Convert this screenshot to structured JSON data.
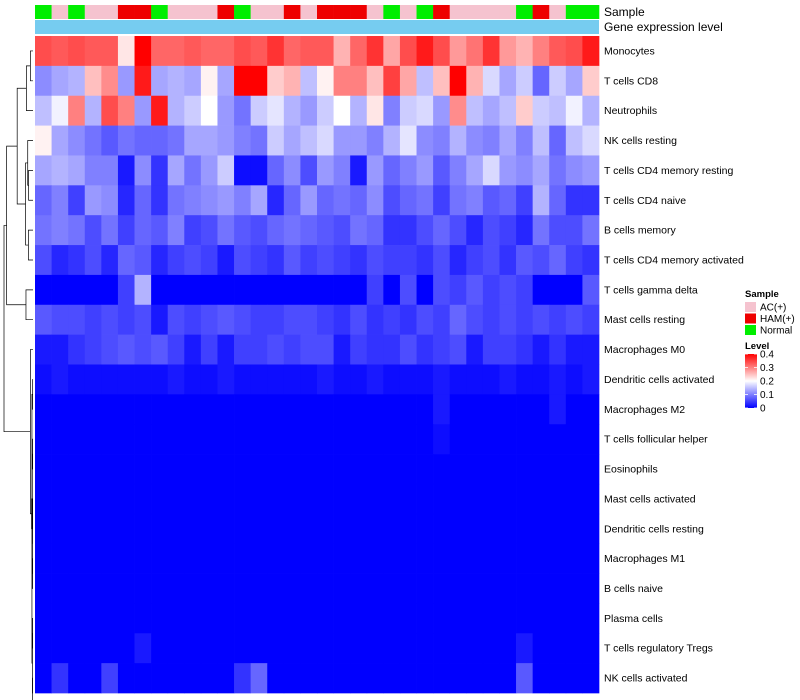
{
  "chart_data": {
    "type": "heatmap",
    "annotation_labels": {
      "sample": "Sample",
      "expression": "Gene expression level"
    },
    "columns": 34,
    "sample_groups": [
      "Normal",
      "AC(+)",
      "Normal",
      "AC(+)",
      "AC(+)",
      "HAM(+)",
      "HAM(+)",
      "Normal",
      "AC(+)",
      "AC(+)",
      "AC(+)",
      "HAM(+)",
      "Normal",
      "AC(+)",
      "AC(+)",
      "HAM(+)",
      "AC(+)",
      "HAM(+)",
      "HAM(+)",
      "HAM(+)",
      "AC(+)",
      "Normal",
      "AC(+)",
      "Normal",
      "HAM(+)",
      "AC(+)",
      "AC(+)",
      "AC(+)",
      "AC(+)",
      "Normal",
      "HAM(+)",
      "AC(+)",
      "Normal",
      "Normal"
    ],
    "rows": [
      {
        "label": "Monocytes",
        "values": [
          0.34,
          0.33,
          0.34,
          0.33,
          0.33,
          0.22,
          0.4,
          0.32,
          0.32,
          0.33,
          0.32,
          0.32,
          0.34,
          0.33,
          0.36,
          0.32,
          0.33,
          0.33,
          0.26,
          0.32,
          0.36,
          0.27,
          0.34,
          0.38,
          0.34,
          0.28,
          0.31,
          0.36,
          0.28,
          0.26,
          0.3,
          0.33,
          0.34,
          0.38
        ]
      },
      {
        "label": "T cells CD8",
        "values": [
          0.11,
          0.13,
          0.14,
          0.25,
          0.29,
          0.12,
          0.38,
          0.13,
          0.14,
          0.13,
          0.21,
          0.13,
          0.4,
          0.4,
          0.24,
          0.26,
          0.15,
          0.21,
          0.3,
          0.3,
          0.25,
          0.35,
          0.27,
          0.15,
          0.25,
          0.4,
          0.26,
          0.17,
          0.13,
          0.16,
          0.08,
          0.16,
          0.13,
          0.24
        ]
      },
      {
        "label": "Neutrophils",
        "values": [
          0.15,
          0.19,
          0.3,
          0.14,
          0.34,
          0.3,
          0.12,
          0.38,
          0.14,
          0.16,
          0.2,
          0.12,
          0.09,
          0.16,
          0.18,
          0.14,
          0.12,
          0.16,
          0.2,
          0.14,
          0.22,
          0.1,
          0.16,
          0.17,
          0.12,
          0.29,
          0.15,
          0.13,
          0.15,
          0.24,
          0.16,
          0.15,
          0.19,
          0.14
        ]
      },
      {
        "label": "NK cells resting",
        "values": [
          0.21,
          0.13,
          0.11,
          0.09,
          0.07,
          0.09,
          0.08,
          0.08,
          0.09,
          0.13,
          0.13,
          0.12,
          0.1,
          0.09,
          0.16,
          0.13,
          0.15,
          0.17,
          0.12,
          0.12,
          0.1,
          0.14,
          0.18,
          0.11,
          0.1,
          0.14,
          0.11,
          0.1,
          0.13,
          0.1,
          0.15,
          0.08,
          0.15,
          0.17
        ]
      },
      {
        "label": "T cells CD4 memory resting",
        "values": [
          0.13,
          0.14,
          0.13,
          0.1,
          0.1,
          0.02,
          0.11,
          0.04,
          0.13,
          0.09,
          0.12,
          0.16,
          0.01,
          0.01,
          0.08,
          0.11,
          0.06,
          0.12,
          0.1,
          0.02,
          0.12,
          0.08,
          0.1,
          0.12,
          0.07,
          0.1,
          0.13,
          0.17,
          0.12,
          0.11,
          0.13,
          0.09,
          0.11,
          0.12
        ]
      },
      {
        "label": "T cells CD4 naive",
        "values": [
          0.08,
          0.1,
          0.05,
          0.12,
          0.11,
          0.03,
          0.08,
          0.04,
          0.09,
          0.1,
          0.11,
          0.12,
          0.1,
          0.13,
          0.03,
          0.08,
          0.12,
          0.08,
          0.09,
          0.08,
          0.11,
          0.06,
          0.08,
          0.09,
          0.05,
          0.09,
          0.1,
          0.07,
          0.08,
          0.05,
          0.14,
          0.08,
          0.04,
          0.04
        ]
      },
      {
        "label": "B cells memory",
        "values": [
          0.09,
          0.1,
          0.09,
          0.06,
          0.09,
          0.05,
          0.08,
          0.07,
          0.1,
          0.05,
          0.06,
          0.09,
          0.07,
          0.06,
          0.08,
          0.09,
          0.08,
          0.07,
          0.06,
          0.09,
          0.08,
          0.04,
          0.04,
          0.06,
          0.08,
          0.06,
          0.03,
          0.06,
          0.05,
          0.03,
          0.09,
          0.06,
          0.06,
          0.09
        ]
      },
      {
        "label": "T cells CD4 memory activated",
        "values": [
          0.06,
          0.03,
          0.04,
          0.06,
          0.03,
          0.08,
          0.07,
          0.03,
          0.05,
          0.06,
          0.05,
          0.02,
          0.06,
          0.05,
          0.04,
          0.07,
          0.05,
          0.06,
          0.05,
          0.04,
          0.06,
          0.05,
          0.05,
          0.04,
          0.06,
          0.03,
          0.05,
          0.06,
          0.04,
          0.07,
          0.06,
          0.08,
          0.05,
          0.04
        ]
      },
      {
        "label": "T cells gamma delta",
        "values": [
          0.0,
          0.0,
          0.0,
          0.0,
          0.0,
          0.05,
          0.14,
          0.0,
          0.0,
          0.0,
          0.0,
          0.0,
          0.0,
          0.0,
          0.0,
          0.0,
          0.0,
          0.0,
          0.0,
          0.0,
          0.05,
          0.0,
          0.06,
          0.0,
          0.06,
          0.05,
          0.07,
          0.05,
          0.06,
          0.05,
          0.0,
          0.0,
          0.0,
          0.07
        ]
      },
      {
        "label": "Mast cells resting",
        "values": [
          0.07,
          0.06,
          0.06,
          0.05,
          0.06,
          0.05,
          0.06,
          0.02,
          0.06,
          0.05,
          0.06,
          0.07,
          0.06,
          0.05,
          0.05,
          0.06,
          0.06,
          0.05,
          0.04,
          0.06,
          0.04,
          0.05,
          0.04,
          0.06,
          0.05,
          0.08,
          0.06,
          0.05,
          0.06,
          0.05,
          0.06,
          0.05,
          0.06,
          0.05
        ]
      },
      {
        "label": "Macrophages M0",
        "values": [
          0.02,
          0.02,
          0.04,
          0.05,
          0.06,
          0.07,
          0.06,
          0.07,
          0.05,
          0.02,
          0.05,
          0.02,
          0.05,
          0.05,
          0.06,
          0.05,
          0.06,
          0.06,
          0.02,
          0.05,
          0.04,
          0.04,
          0.06,
          0.04,
          0.05,
          0.06,
          0.02,
          0.05,
          0.05,
          0.04,
          0.02,
          0.04,
          0.02,
          0.02
        ]
      },
      {
        "label": "Dendritic cells activated",
        "values": [
          0.01,
          0.02,
          0.01,
          0.01,
          0.01,
          0.01,
          0.01,
          0.01,
          0.02,
          0.01,
          0.01,
          0.02,
          0.01,
          0.01,
          0.01,
          0.01,
          0.01,
          0.02,
          0.01,
          0.01,
          0.02,
          0.01,
          0.01,
          0.01,
          0.02,
          0.01,
          0.01,
          0.01,
          0.02,
          0.01,
          0.01,
          0.02,
          0.01,
          0.02
        ]
      },
      {
        "label": "Macrophages M2",
        "values": [
          0.0,
          0.0,
          0.0,
          0.0,
          0.0,
          0.0,
          0.0,
          0.0,
          0.0,
          0.0,
          0.0,
          0.0,
          0.0,
          0.0,
          0.0,
          0.0,
          0.0,
          0.0,
          0.0,
          0.0,
          0.0,
          0.0,
          0.0,
          0.0,
          0.02,
          0.0,
          0.0,
          0.0,
          0.0,
          0.0,
          0.0,
          0.02,
          0.0,
          0.0
        ]
      },
      {
        "label": "T cells follicular helper",
        "values": [
          0.0,
          0.0,
          0.0,
          0.0,
          0.0,
          0.0,
          0.0,
          0.0,
          0.0,
          0.0,
          0.0,
          0.0,
          0.0,
          0.0,
          0.0,
          0.0,
          0.0,
          0.0,
          0.0,
          0.0,
          0.0,
          0.0,
          0.0,
          0.0,
          0.01,
          0.0,
          0.0,
          0.0,
          0.0,
          0.0,
          0.0,
          0.0,
          0.0,
          0.0
        ]
      },
      {
        "label": "Eosinophils",
        "values": [
          0.0,
          0.0,
          0.0,
          0.0,
          0.0,
          0.0,
          0.0,
          0.0,
          0.0,
          0.0,
          0.0,
          0.0,
          0.0,
          0.0,
          0.0,
          0.0,
          0.0,
          0.0,
          0.0,
          0.0,
          0.0,
          0.0,
          0.0,
          0.0,
          0.0,
          0.0,
          0.0,
          0.0,
          0.0,
          0.0,
          0.0,
          0.0,
          0.0,
          0.0
        ]
      },
      {
        "label": "Mast cells activated",
        "values": [
          0.0,
          0.0,
          0.0,
          0.0,
          0.0,
          0.0,
          0.0,
          0.0,
          0.0,
          0.0,
          0.0,
          0.0,
          0.0,
          0.0,
          0.0,
          0.0,
          0.0,
          0.0,
          0.0,
          0.0,
          0.0,
          0.0,
          0.0,
          0.0,
          0.0,
          0.0,
          0.0,
          0.0,
          0.0,
          0.0,
          0.0,
          0.0,
          0.0,
          0.0
        ]
      },
      {
        "label": "Dendritic cells resting",
        "values": [
          0.0,
          0.0,
          0.0,
          0.0,
          0.0,
          0.0,
          0.0,
          0.0,
          0.0,
          0.0,
          0.0,
          0.0,
          0.0,
          0.0,
          0.0,
          0.0,
          0.0,
          0.0,
          0.0,
          0.0,
          0.0,
          0.0,
          0.0,
          0.0,
          0.0,
          0.0,
          0.0,
          0.0,
          0.0,
          0.0,
          0.0,
          0.0,
          0.0,
          0.0
        ]
      },
      {
        "label": "Macrophages M1",
        "values": [
          0.0,
          0.0,
          0.0,
          0.0,
          0.0,
          0.0,
          0.0,
          0.0,
          0.0,
          0.0,
          0.0,
          0.0,
          0.0,
          0.0,
          0.0,
          0.0,
          0.0,
          0.0,
          0.0,
          0.0,
          0.0,
          0.0,
          0.0,
          0.0,
          0.0,
          0.0,
          0.0,
          0.0,
          0.0,
          0.0,
          0.0,
          0.0,
          0.0,
          0.0
        ]
      },
      {
        "label": "B cells naive",
        "values": [
          0.0,
          0.0,
          0.0,
          0.0,
          0.0,
          0.0,
          0.0,
          0.0,
          0.0,
          0.0,
          0.0,
          0.0,
          0.0,
          0.0,
          0.0,
          0.0,
          0.0,
          0.0,
          0.0,
          0.0,
          0.0,
          0.0,
          0.0,
          0.0,
          0.0,
          0.0,
          0.0,
          0.0,
          0.0,
          0.0,
          0.0,
          0.0,
          0.0,
          0.0
        ]
      },
      {
        "label": "Plasma cells",
        "values": [
          0.0,
          0.0,
          0.0,
          0.0,
          0.0,
          0.0,
          0.0,
          0.0,
          0.0,
          0.0,
          0.0,
          0.0,
          0.0,
          0.0,
          0.0,
          0.0,
          0.0,
          0.0,
          0.0,
          0.0,
          0.0,
          0.0,
          0.0,
          0.0,
          0.0,
          0.0,
          0.0,
          0.0,
          0.0,
          0.0,
          0.0,
          0.0,
          0.0,
          0.0
        ]
      },
      {
        "label": "T cells regulatory  Tregs",
        "values": [
          0.0,
          0.0,
          0.0,
          0.0,
          0.0,
          0.0,
          0.02,
          0.0,
          0.0,
          0.0,
          0.0,
          0.0,
          0.0,
          0.0,
          0.0,
          0.0,
          0.0,
          0.0,
          0.0,
          0.0,
          0.0,
          0.0,
          0.0,
          0.0,
          0.0,
          0.0,
          0.0,
          0.0,
          0.0,
          0.02,
          0.0,
          0.0,
          0.0,
          0.0
        ]
      },
      {
        "label": "NK cells activated",
        "values": [
          0.0,
          0.04,
          0.0,
          0.0,
          0.05,
          0.0,
          0.0,
          0.0,
          0.0,
          0.0,
          0.0,
          0.0,
          0.04,
          0.08,
          0.0,
          0.0,
          0.0,
          0.0,
          0.0,
          0.0,
          0.0,
          0.0,
          0.0,
          0.0,
          0.0,
          0.0,
          0.0,
          0.0,
          0.0,
          0.07,
          0.0,
          0.0,
          0.0,
          0.0
        ]
      }
    ],
    "legend": {
      "sample_title": "Sample",
      "sample_items": [
        {
          "label": "AC(+)",
          "color": "#f5c3cf"
        },
        {
          "label": "HAM(+)",
          "color": "#ee0000"
        },
        {
          "label": "Normal",
          "color": "#00ee00"
        }
      ],
      "level_title": "Level",
      "level_ticks": [
        0.4,
        0.3,
        0.2,
        0.1,
        0
      ],
      "level_range": [
        0,
        0.4
      ],
      "placement": "right"
    },
    "colors": {
      "low": "#0000ff",
      "mid": "#ffffff",
      "high": "#ff0000",
      "expression_bar": "#76ccf0"
    },
    "row_dendrogram": [
      {
        "a": 0,
        "b": 1
      },
      {
        "a": -1,
        "b": 2
      },
      {
        "a": 4,
        "b": 5
      },
      {
        "a": 3,
        "b": -3
      },
      {
        "a": 6,
        "b": 7
      },
      {
        "a": -4,
        "b": -5
      },
      {
        "a": -2,
        "b": -6
      },
      {
        "a": 8,
        "b": 9
      },
      {
        "a": -7,
        "b": -8
      },
      {
        "a": 11,
        "b": 12
      },
      {
        "a": 13,
        "b": 14
      },
      {
        "a": 15,
        "b": 16
      },
      {
        "a": 17,
        "b": 18
      },
      {
        "a": 19,
        "b": 20
      },
      {
        "a": 21,
        "b": 22
      },
      {
        "a": -12,
        "b": -13
      },
      {
        "a": -14,
        "b": -15
      },
      {
        "a": -11,
        "b": -16
      },
      {
        "a": -10,
        "b": -17
      },
      {
        "a": -18,
        "b": -19
      },
      {
        "a": 10,
        "b": -20
      },
      {
        "a": -9,
        "b": -21
      }
    ],
    "dendrogram_heights": [
      0.03,
      0.075,
      0.05,
      0.06,
      0.052,
      0.085,
      0.18,
      0.08,
      0.3,
      0.004,
      0.004,
      0.004,
      0.004,
      0.004,
      0.004,
      0.006,
      0.006,
      0.008,
      0.012,
      0.016,
      0.03,
      0.33
    ]
  }
}
